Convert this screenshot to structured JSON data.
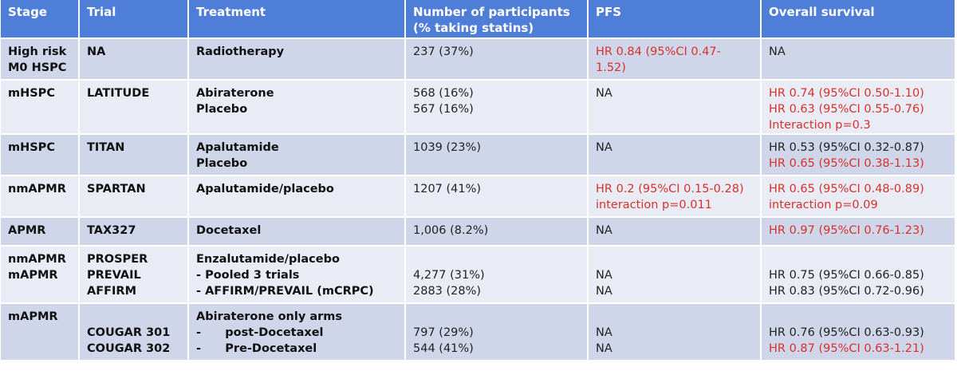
{
  "headers": [
    "Stage",
    "Trial",
    "Treatment",
    "Number of participants (% taking statins)",
    "PFS",
    "Overall survival"
  ],
  "header_lines": {
    "participants": [
      "Number of participants",
      "(% taking statins)"
    ]
  },
  "colors": {
    "header_bg": "#4f7ed9",
    "row_dark": "#cfd6ea",
    "row_light": "#e9ecf5",
    "highlight_red": "#d9302a"
  },
  "rows": [
    {
      "stage": [
        "High risk",
        "M0 HSPC"
      ],
      "trial": [
        "NA"
      ],
      "treatment": [
        "Radiotherapy"
      ],
      "participants": [
        "237 (37%)"
      ],
      "pfs": [
        {
          "text": "HR 0.84 (95%CI 0.47-1.52)",
          "red": true
        }
      ],
      "os": [
        {
          "text": "NA",
          "red": false
        }
      ]
    },
    {
      "stage": [
        "mHSPC"
      ],
      "trial": [
        "LATITUDE"
      ],
      "treatment": [
        "Abiraterone",
        "Placebo"
      ],
      "participants": [
        "568 (16%)",
        "567 (16%)"
      ],
      "pfs": [
        {
          "text": "NA",
          "red": false
        }
      ],
      "os": [
        {
          "text": "HR 0.74 (95%CI 0.50-1.10)",
          "red": true
        },
        {
          "text": "HR 0.63 (95%CI 0.55-0.76)",
          "red": true
        },
        {
          "text": "Interaction p=0.3",
          "red": true
        }
      ]
    },
    {
      "stage": [
        "mHSPC"
      ],
      "trial": [
        "TITAN"
      ],
      "treatment": [
        "Apalutamide",
        "Placebo"
      ],
      "participants": [
        "1039 (23%)"
      ],
      "pfs": [
        {
          "text": "NA",
          "red": false
        }
      ],
      "os": [
        {
          "text": "HR 0.53 (95%CI 0.32-0.87)",
          "red": false
        },
        {
          "text": "HR 0.65 (95%CI 0.38-1.13)",
          "red": true
        }
      ]
    },
    {
      "stage": [
        "nmAPMR"
      ],
      "trial": [
        "SPARTAN"
      ],
      "treatment": [
        "Apalutamide/placebo"
      ],
      "participants": [
        "1207 (41%)"
      ],
      "pfs": [
        {
          "text": "HR 0.2 (95%CI 0.15-0.28)",
          "red": true
        },
        {
          "text": "interaction p=0.011",
          "red": true
        }
      ],
      "os": [
        {
          "text": "HR 0.65 (95%CI 0.48-0.89)",
          "red": true
        },
        {
          "text": "interaction p=0.09",
          "red": true
        }
      ]
    },
    {
      "stage": [
        "APMR"
      ],
      "trial": [
        "TAX327"
      ],
      "treatment": [
        "Docetaxel"
      ],
      "participants": [
        "1,006 (8.2%)"
      ],
      "pfs": [
        {
          "text": "NA",
          "red": false
        }
      ],
      "os": [
        {
          "text": "HR 0.97 (95%CI 0.76-1.23)",
          "red": true
        }
      ]
    },
    {
      "stage": [
        "nmAPMR",
        "mAPMR"
      ],
      "trial": [
        "PROSPER",
        "PREVAIL",
        "AFFIRM"
      ],
      "treatment": [
        "Enzalutamide/placebo",
        "- Pooled 3 trials",
        "- AFFIRM/PREVAIL (mCRPC)"
      ],
      "participants": [
        "",
        "4,277 (31%)",
        "2883 (28%)"
      ],
      "pfs": [
        {
          "text": "",
          "red": false
        },
        {
          "text": "NA",
          "red": false
        },
        {
          "text": "NA",
          "red": false
        }
      ],
      "os": [
        {
          "text": "",
          "red": false
        },
        {
          "text": "HR 0.75 (95%CI 0.66-0.85)",
          "red": false
        },
        {
          "text": "HR 0.83 (95%CI 0.72-0.96)",
          "red": false
        }
      ]
    },
    {
      "stage": [
        "mAPMR"
      ],
      "trial": [
        "",
        "COUGAR 301",
        "COUGAR 302"
      ],
      "treatment": [
        "Abiraterone only arms",
        "-      post-Docetaxel",
        "-      Pre-Docetaxel"
      ],
      "participants": [
        "",
        "797 (29%)",
        "544 (41%)"
      ],
      "pfs": [
        {
          "text": "",
          "red": false
        },
        {
          "text": "NA",
          "red": false
        },
        {
          "text": "NA",
          "red": false
        }
      ],
      "os": [
        {
          "text": "",
          "red": false
        },
        {
          "text": "HR 0.76 (95%CI 0.63-0.93)",
          "red": false
        },
        {
          "text": "HR 0.87 (95%CI 0.63-1.21)",
          "red": true
        }
      ]
    }
  ]
}
